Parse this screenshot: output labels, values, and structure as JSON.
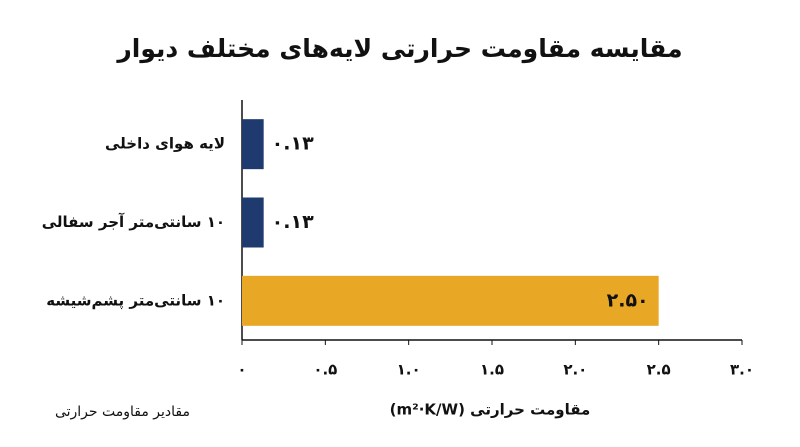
{
  "chart_data": {
    "type": "bar",
    "orientation": "horizontal",
    "title": "مقایسه مقاومت حرارتی لایه‌های مختلف دیوار",
    "categories": [
      "لایه هوای داخلی",
      "۱۰ سانتی‌متر آجر سفالی",
      "۱۰ سانتی‌متر پشم‌شیشه"
    ],
    "values": [
      0.13,
      0.13,
      2.5
    ],
    "value_labels": [
      "۰.۱۳",
      "۰.۱۳",
      "۲.۵۰"
    ],
    "colors": [
      "#1f3a6e",
      "#1f3a6e",
      "#e8a826"
    ],
    "xlim": [
      0,
      3.0
    ],
    "xticks": [
      {
        "value": 0,
        "label": "۰"
      },
      {
        "value": 0.5,
        "label": "۰.۵"
      },
      {
        "value": 1.0,
        "label": "۱.۰"
      },
      {
        "value": 1.5,
        "label": "۱.۵"
      },
      {
        "value": 2.0,
        "label": "۲.۰"
      },
      {
        "value": 2.5,
        "label": "۲.۵"
      },
      {
        "value": 3.0,
        "label": "۳.۰"
      }
    ],
    "xlabel": "مقاومت حرارتی (m²·K/W)",
    "footnote": "مقادیر مقاومت حرارتی"
  }
}
